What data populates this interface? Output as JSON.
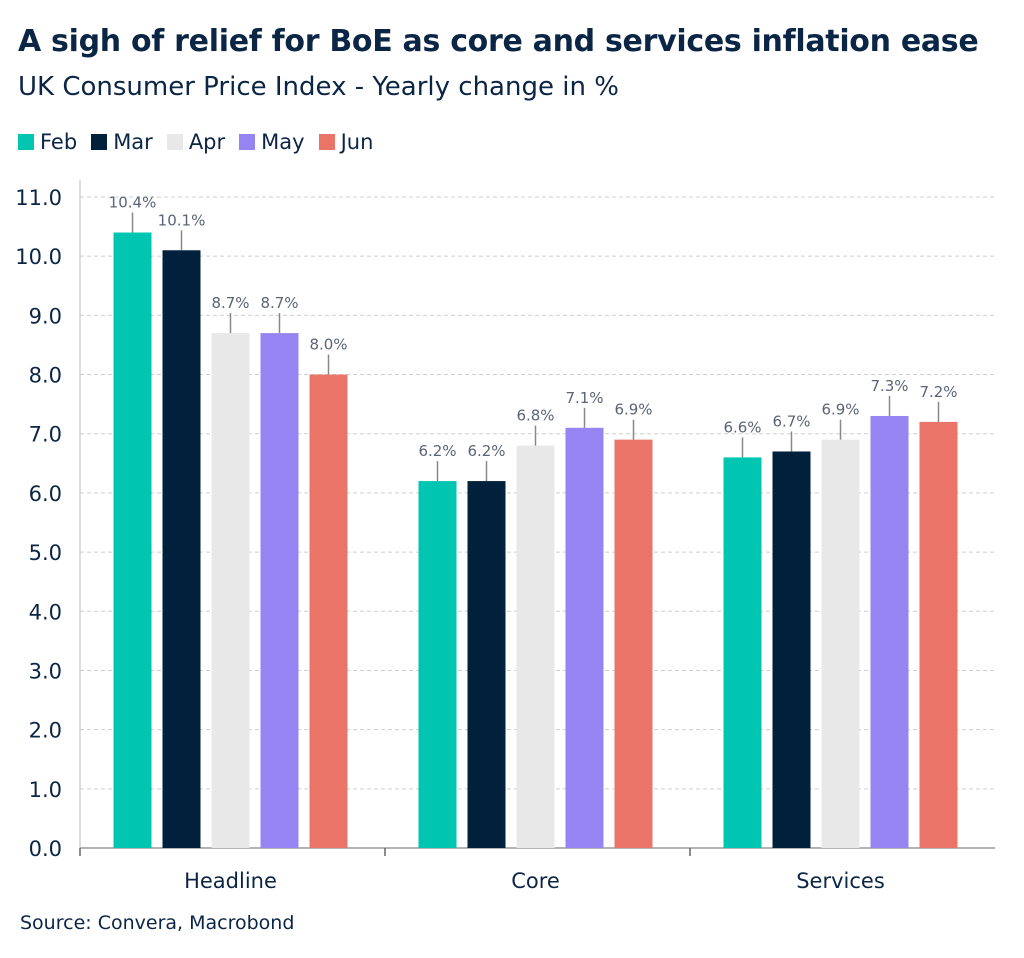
{
  "chart_data": {
    "type": "bar",
    "title": "A sigh of relief for BoE as core and services inflation ease",
    "subtitle": "UK Consumer Price Index - Yearly change in %",
    "source": "Source: Convera, Macrobond",
    "categories": [
      "Headline",
      "Core",
      "Services"
    ],
    "series": [
      {
        "name": "Feb",
        "color": "#00c6b1",
        "values": [
          10.4,
          6.2,
          6.6
        ],
        "labels": [
          "10.4%",
          "6.2%",
          "6.6%"
        ]
      },
      {
        "name": "Mar",
        "color": "#00203b",
        "values": [
          10.1,
          6.2,
          6.7
        ],
        "labels": [
          "10.1%",
          "6.2%",
          "6.7%"
        ]
      },
      {
        "name": "Apr",
        "color": "#e8e8e8",
        "values": [
          8.7,
          6.8,
          6.9
        ],
        "labels": [
          "8.7%",
          "6.8%",
          "6.9%"
        ]
      },
      {
        "name": "May",
        "color": "#9584f2",
        "values": [
          8.7,
          7.1,
          7.3
        ],
        "labels": [
          "8.7%",
          "7.1%",
          "7.3%"
        ]
      },
      {
        "name": "Jun",
        "color": "#eb7468",
        "values": [
          8.0,
          6.9,
          7.2
        ],
        "labels": [
          "8.0%",
          "6.9%",
          "7.2%"
        ]
      }
    ],
    "yticks": [
      "0.0",
      "1.0",
      "2.0",
      "3.0",
      "4.0",
      "5.0",
      "6.0",
      "7.0",
      "8.0",
      "9.0",
      "10.0",
      "11.0"
    ],
    "ylim": [
      0,
      11
    ],
    "grid": true,
    "legend": "top-left"
  }
}
